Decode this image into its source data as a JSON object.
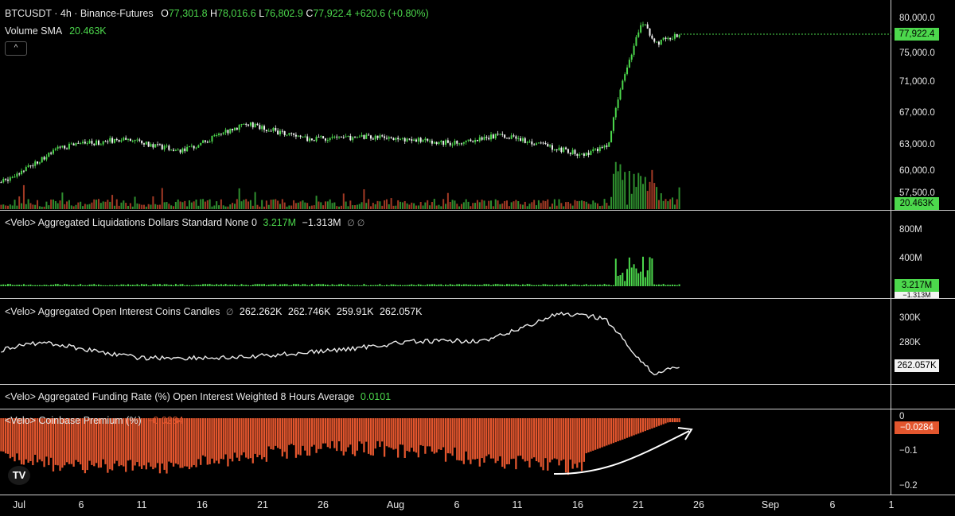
{
  "header": {
    "symbol": "BTCUSDT · 4h · Binance-Futures",
    "ohlc": [
      {
        "k": "O",
        "v": "77,301.8"
      },
      {
        "k": "H",
        "v": "78,016.6"
      },
      {
        "k": "L",
        "v": "76,802.9"
      },
      {
        "k": "C",
        "v": "77,922.4"
      },
      {
        "k": "",
        "v": "+620.6 (+0.80%)"
      }
    ],
    "volume_label": "Volume SMA",
    "volume_value": "20.463K",
    "collapse_icon": "^"
  },
  "price_axis": {
    "ticks": [
      "80,000.0",
      "75,000.0",
      "71,000.0",
      "67,000.0",
      "63,000.0",
      "60,000.0",
      "57,500.0"
    ],
    "last_price": "77,922.4",
    "volume_badge": "20.463K"
  },
  "liquidations": {
    "label": "<Velo> Aggregated Liquidations Dollars Standard None 0",
    "value1": "3.217M",
    "value2": "−1.313M",
    "ticks": [
      "800M",
      "400M"
    ],
    "badge1": "3.217M",
    "badge2": "−1.313M"
  },
  "open_interest": {
    "label": "<Velo> Aggregated Open Interest Coins Candles",
    "values": [
      "262.262K",
      "262.746K",
      "259.91K",
      "262.057K"
    ],
    "ticks": [
      "300K",
      "280K"
    ],
    "badge": "262.057K"
  },
  "funding": {
    "label": "<Velo> Aggregated Funding Rate (%) Open Interest Weighted 8 Hours Average",
    "value": "0.0101"
  },
  "premium": {
    "label": "<Velo> Coinbase Premium (%)",
    "value": "−0.0284",
    "ticks": [
      "0",
      "−0.1",
      "−0.2"
    ],
    "badge": "−0.0284"
  },
  "x_axis": [
    "Jul",
    "6",
    "11",
    "16",
    "21",
    "26",
    "Aug",
    "6",
    "11",
    "16",
    "21",
    "26",
    "Sep",
    "6",
    "1"
  ],
  "logo": "TV",
  "colors": {
    "up": "#4cd84c",
    "down": "#e3562e",
    "bg": "#000000"
  },
  "chart_data": {
    "type": "line",
    "x": [
      "Jul 1",
      "Jul 6",
      "Jul 11",
      "Jul 16",
      "Jul 21",
      "Jul 26",
      "Aug 1",
      "Aug 6",
      "Aug 11",
      "Aug 16",
      "Aug 19",
      "Aug 20",
      "Aug 21",
      "Aug 22",
      "Aug 23",
      "Aug 24"
    ],
    "series": [
      {
        "values": [
          59000,
          63500,
          64500,
          63000,
          66500,
          64500,
          64800,
          64000,
          65000,
          62500,
          63500,
          70000,
          79500,
          76500,
          77500,
          77922
        ]
      }
    ],
    "ylim": [
      57500,
      81000
    ]
  }
}
